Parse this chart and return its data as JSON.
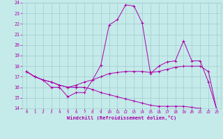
{
  "xlabel": "Windchill (Refroidissement éolien,°C)",
  "xlim": [
    -0.5,
    23.5
  ],
  "ylim": [
    14,
    24
  ],
  "yticks": [
    14,
    15,
    16,
    17,
    18,
    19,
    20,
    21,
    22,
    23,
    24
  ],
  "xticks": [
    0,
    1,
    2,
    3,
    4,
    5,
    6,
    7,
    8,
    9,
    10,
    11,
    12,
    13,
    14,
    15,
    16,
    17,
    18,
    19,
    20,
    21,
    22,
    23
  ],
  "background_color": "#c5eaea",
  "line_color": "#aa00aa",
  "grid_color": "#a0cccc",
  "line1_y": [
    17.5,
    17.0,
    16.7,
    16.0,
    16.0,
    15.1,
    15.5,
    15.5,
    16.7,
    18.1,
    21.9,
    22.4,
    23.8,
    23.7,
    22.1,
    17.3,
    18.0,
    18.4,
    18.5,
    20.4,
    18.5,
    18.5,
    16.5,
    13.9
  ],
  "line2_y": [
    17.5,
    17.0,
    16.7,
    16.5,
    16.2,
    16.0,
    16.2,
    16.5,
    16.7,
    17.0,
    17.3,
    17.4,
    17.5,
    17.5,
    17.5,
    17.4,
    17.5,
    17.7,
    17.9,
    18.0,
    18.0,
    18.0,
    17.5,
    13.9
  ],
  "line3_y": [
    17.5,
    17.0,
    16.7,
    16.5,
    16.2,
    16.0,
    16.0,
    16.0,
    15.8,
    15.5,
    15.3,
    15.1,
    14.9,
    14.7,
    14.5,
    14.3,
    14.2,
    14.2,
    14.2,
    14.2,
    14.1,
    14.0,
    13.9,
    13.8
  ]
}
